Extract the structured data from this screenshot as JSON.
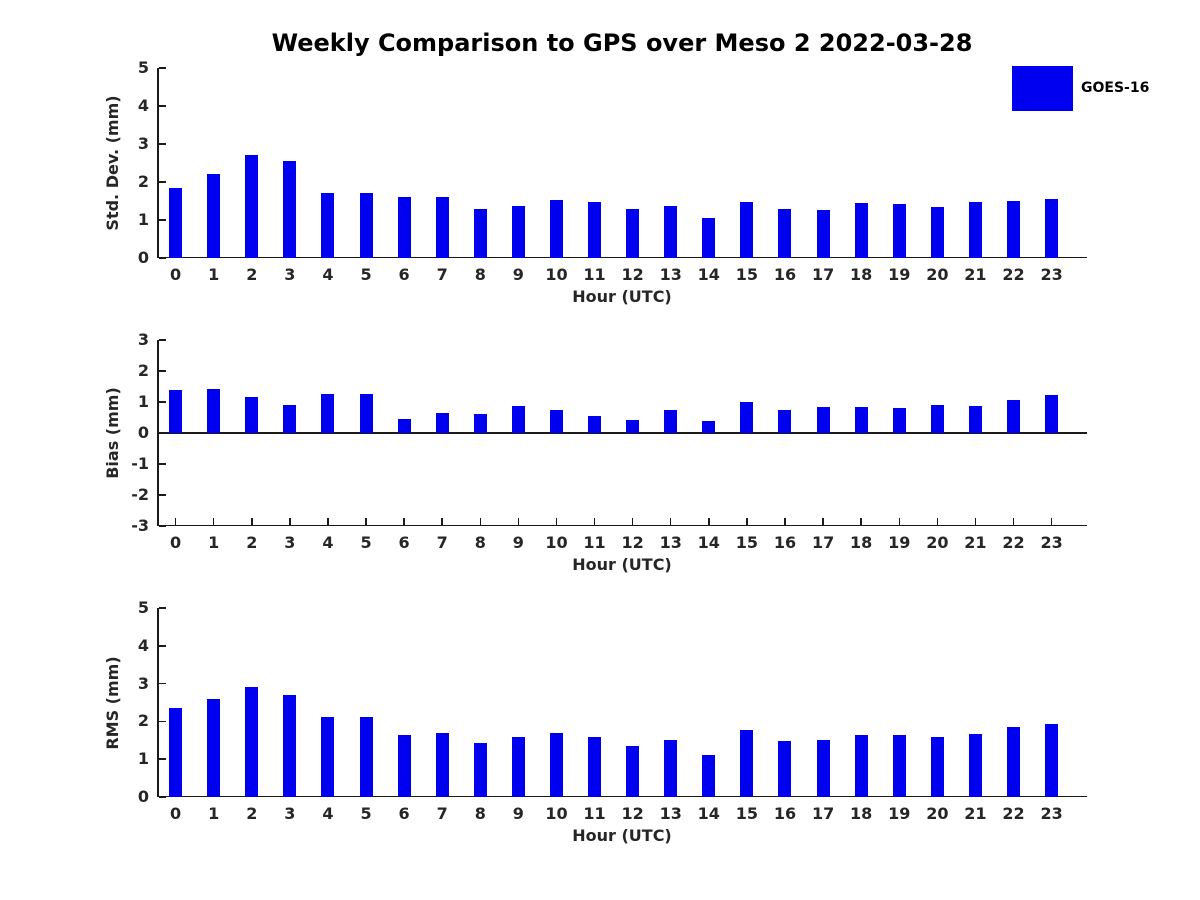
{
  "title": "Weekly Comparison to GPS over Meso 2 2022-03-28",
  "legend": {
    "label": "GOES-16",
    "color": "#0000F0",
    "position": "top-right-outside"
  },
  "colors": {
    "bar": "#0000F0",
    "axis": "#1a1a1a",
    "tick_text": "#262626",
    "title_text": "#000000",
    "background": "#ffffff"
  },
  "chart_data": [
    {
      "type": "bar",
      "ylabel": "Std. Dev. (mm)",
      "xlabel": "Hour (UTC)",
      "ylim": [
        0,
        5
      ],
      "yticks": [
        0,
        1,
        2,
        3,
        4,
        5
      ],
      "grid": false,
      "categories": [
        "0",
        "1",
        "2",
        "3",
        "4",
        "5",
        "6",
        "7",
        "8",
        "9",
        "10",
        "11",
        "12",
        "13",
        "14",
        "15",
        "16",
        "17",
        "18",
        "19",
        "20",
        "21",
        "22",
        "23"
      ],
      "series": [
        {
          "name": "GOES-16",
          "values": [
            1.85,
            2.2,
            2.7,
            2.55,
            1.7,
            1.72,
            1.6,
            1.6,
            1.3,
            1.36,
            1.53,
            1.48,
            1.3,
            1.36,
            1.05,
            1.47,
            1.3,
            1.27,
            1.44,
            1.43,
            1.33,
            1.47,
            1.51,
            1.54
          ]
        }
      ]
    },
    {
      "type": "bar",
      "ylabel": "Bias (mm)",
      "xlabel": "Hour (UTC)",
      "ylim": [
        -3,
        3
      ],
      "yticks": [
        -3,
        -2,
        -1,
        0,
        1,
        2,
        3
      ],
      "grid": false,
      "categories": [
        "0",
        "1",
        "2",
        "3",
        "4",
        "5",
        "6",
        "7",
        "8",
        "9",
        "10",
        "11",
        "12",
        "13",
        "14",
        "15",
        "16",
        "17",
        "18",
        "19",
        "20",
        "21",
        "22",
        "23"
      ],
      "series": [
        {
          "name": "GOES-16",
          "values": [
            1.4,
            1.43,
            1.16,
            0.9,
            1.27,
            1.27,
            0.45,
            0.65,
            0.6,
            0.88,
            0.73,
            0.55,
            0.42,
            0.74,
            0.4,
            1.0,
            0.73,
            0.85,
            0.84,
            0.8,
            0.9,
            0.87,
            1.05,
            1.22
          ]
        }
      ]
    },
    {
      "type": "bar",
      "ylabel": "RMS (mm)",
      "xlabel": "Hour (UTC)",
      "ylim": [
        0,
        5
      ],
      "yticks": [
        0,
        1,
        2,
        3,
        4,
        5
      ],
      "grid": false,
      "categories": [
        "0",
        "1",
        "2",
        "3",
        "4",
        "5",
        "6",
        "7",
        "8",
        "9",
        "10",
        "11",
        "12",
        "13",
        "14",
        "15",
        "16",
        "17",
        "18",
        "19",
        "20",
        "21",
        "22",
        "23"
      ],
      "series": [
        {
          "name": "GOES-16",
          "values": [
            2.35,
            2.6,
            2.9,
            2.7,
            2.12,
            2.12,
            1.65,
            1.7,
            1.42,
            1.6,
            1.7,
            1.58,
            1.35,
            1.52,
            1.1,
            1.78,
            1.47,
            1.52,
            1.63,
            1.63,
            1.58,
            1.68,
            1.85,
            1.93
          ]
        }
      ]
    }
  ]
}
